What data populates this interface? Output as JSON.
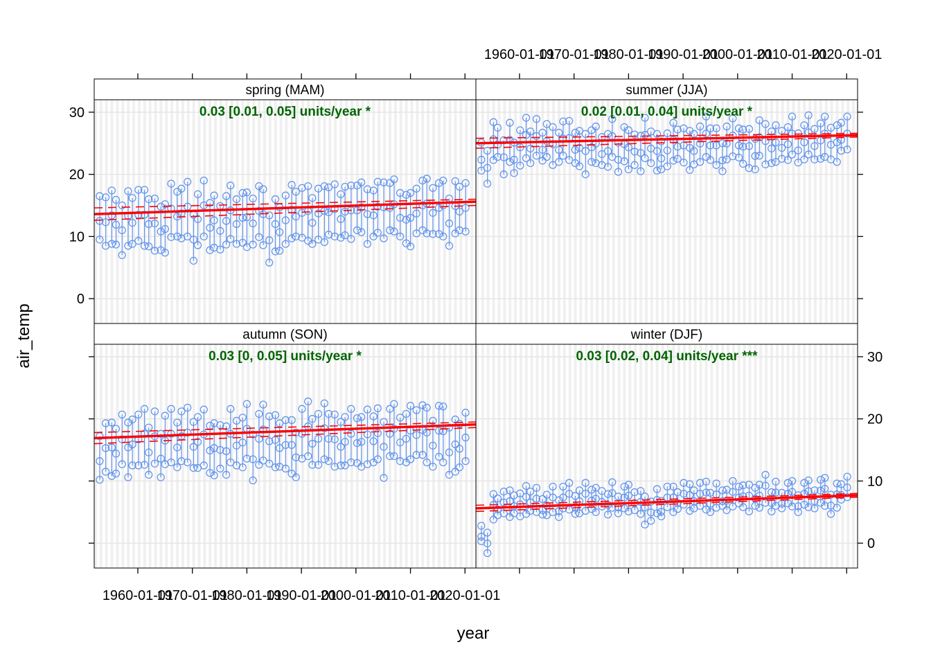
{
  "chart_data": {
    "type": "scatter",
    "layout": "lattice-2x2",
    "xlabel": "year",
    "ylabel": "air_temp",
    "xlim": [
      "1952-01-01",
      "2022-01-01"
    ],
    "ylim": [
      -4,
      32
    ],
    "x_ticks": [
      "1960-01-01",
      "1970-01-01",
      "1980-01-01",
      "1990-01-01",
      "2000-01-01",
      "2010-01-01",
      "2020-01-01"
    ],
    "y_ticks": [
      0,
      10,
      20,
      30
    ],
    "grid": true,
    "colors": {
      "points": "#6495ed",
      "trend": "#ff0000",
      "annotation": "#006400",
      "strip_bg": "#ffffff",
      "panel_stripe": "#f0f0f0",
      "grid": "#e6e6e6"
    },
    "panels": [
      {
        "title": "spring (MAM)",
        "annotation": "0.03 [0.01, 0.05] units/year *",
        "trend": {
          "y_start": 13.6,
          "y_end": 15.6,
          "ci_lower_start": 12.6,
          "ci_lower_end": 15.0,
          "ci_upper_start": 14.6,
          "ci_upper_end": 16.0
        },
        "month_min": [
          9.5,
          8.5,
          8.8,
          8.7,
          7.0,
          8.5,
          8.8,
          9.3,
          8.5,
          8.4,
          7.7,
          7.8,
          7.4,
          9.9,
          10.0,
          9.7,
          10.0,
          6.1,
          8.6,
          10.0,
          7.8,
          8.2,
          7.9,
          8.7,
          9.6,
          8.8,
          9.0,
          8.3,
          8.7,
          9.9,
          8.6,
          5.8,
          7.6,
          7.7,
          8.8,
          9.7,
          10.0,
          9.8,
          9.3,
          8.8,
          9.5,
          9.1,
          10.3,
          10.0,
          9.8,
          10.2,
          9.6,
          11.0,
          10.7,
          8.8,
          10.0,
          10.6,
          9.7,
          11.0,
          10.8,
          10.0,
          8.9,
          8.4,
          10.5,
          11.0,
          10.5,
          10.4,
          10.4,
          10.0,
          8.5,
          10.5,
          11.0,
          10.8
        ]
      },
      {
        "title": "summer (JJA)",
        "annotation": "0.02 [0.01, 0.04] units/year *",
        "trend": {
          "y_start": 25.0,
          "y_end": 26.3,
          "ci_lower_start": 24.2,
          "ci_lower_end": 26.0,
          "ci_upper_start": 25.8,
          "ci_upper_end": 26.6
        },
        "month_min": [
          20.6,
          18.5,
          22.3,
          22.8,
          20.0,
          22.0,
          20.2,
          21.4,
          22.6,
          21.8,
          23.0,
          22.2,
          22.8,
          21.5,
          22.0,
          23.0,
          22.3,
          21.8,
          21.3,
          20.0,
          22.0,
          21.8,
          21.5,
          21.2,
          22.8,
          20.4,
          22.1,
          20.8,
          21.5,
          20.5,
          22.6,
          21.8,
          20.6,
          20.8,
          21.3,
          22.2,
          22.5,
          21.9,
          20.7,
          21.6,
          22.0,
          22.8,
          22.3,
          21.5,
          20.5,
          22.4,
          22.9,
          22.7,
          21.7,
          21.0,
          20.8,
          23.0,
          21.6,
          21.8,
          22.0,
          22.5,
          22.3,
          23.2,
          21.9,
          22.4,
          23.2,
          22.4,
          22.5,
          22.8,
          22.4,
          22.0,
          23.8,
          24.0
        ]
      },
      {
        "title": "autumn (SON)",
        "annotation": "0.03 [0, 0.05] units/year *",
        "trend": {
          "y_start": 16.9,
          "y_end": 19.1,
          "ci_lower_start": 16.0,
          "ci_lower_end": 18.6,
          "ci_upper_start": 17.8,
          "ci_upper_end": 19.5
        },
        "month_min": [
          10.2,
          11.5,
          10.8,
          11.2,
          12.7,
          10.6,
          12.5,
          12.5,
          12.6,
          11.0,
          12.8,
          10.6,
          12.7,
          13.0,
          12.2,
          13.2,
          13.0,
          12.1,
          12.1,
          12.5,
          11.3,
          10.9,
          12.0,
          11.0,
          13.0,
          12.5,
          12.2,
          13.6,
          10.1,
          12.6,
          13.3,
          12.8,
          12.2,
          12.3,
          12.0,
          11.2,
          10.6,
          13.6,
          14.0,
          12.6,
          12.6,
          13.5,
          13.2,
          12.3,
          12.5,
          12.5,
          13.0,
          12.9,
          12.3,
          12.7,
          13.0,
          13.5,
          10.5,
          14.0,
          14.0,
          13.2,
          13.0,
          13.5,
          14.2,
          14.2,
          13.0,
          12.3,
          13.9,
          13.0,
          11.0,
          11.5,
          12.2,
          13.2
        ]
      },
      {
        "title": "winter (DJF)",
        "annotation": "0.03 [0.02, 0.04] units/year ***",
        "trend": {
          "y_start": 5.6,
          "y_end": 7.7,
          "ci_lower_start": 5.1,
          "ci_lower_end": 7.4,
          "ci_upper_start": 6.1,
          "ci_upper_end": 8.0
        },
        "month_min": [
          0.3,
          -1.6,
          3.8,
          4.5,
          4.8,
          4.2,
          4.8,
          4.3,
          4.7,
          5.2,
          5.0,
          4.6,
          4.5,
          5.0,
          4.2,
          5.6,
          5.4,
          4.7,
          4.8,
          5.2,
          5.5,
          5.0,
          5.9,
          4.6,
          5.7,
          4.8,
          5.6,
          5.1,
          5.3,
          4.7,
          3.0,
          3.6,
          4.8,
          4.3,
          5.8,
          5.0,
          5.5,
          6.2,
          5.2,
          5.6,
          6.0,
          5.4,
          5.0,
          5.7,
          6.0,
          5.3,
          5.9,
          6.4,
          5.8,
          5.1,
          6.0,
          5.7,
          6.5,
          5.1,
          6.0,
          5.6,
          6.4,
          5.9,
          5.0,
          6.2,
          5.8,
          5.6,
          6.5,
          6.0,
          4.7,
          5.7,
          7.0,
          7.4
        ]
      }
    ]
  }
}
